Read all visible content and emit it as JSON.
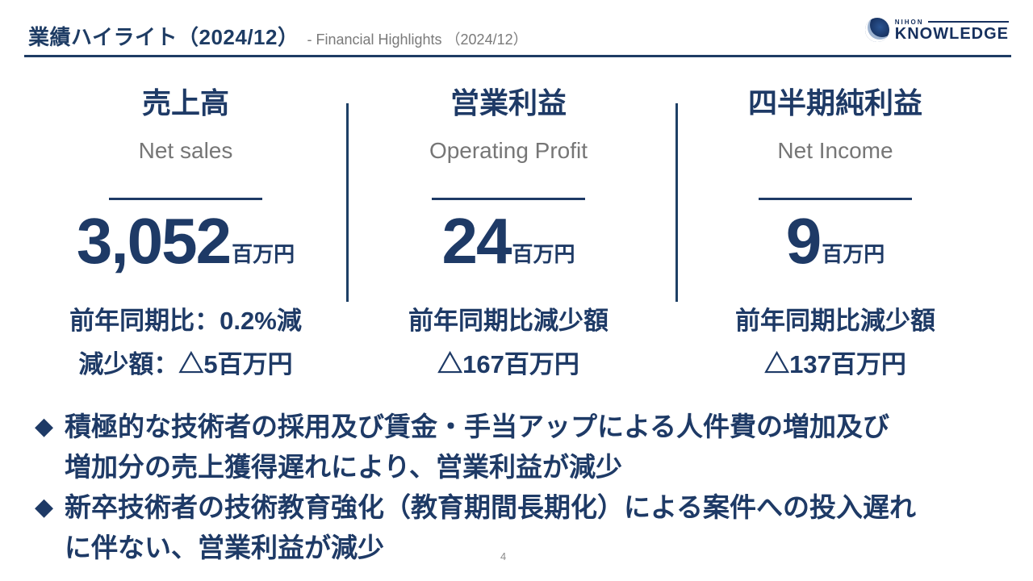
{
  "header": {
    "title_ja": "業績ハイライト（2024/12）",
    "title_en": "- Financial Highlights （2024/12）",
    "logo_top": "NIHON",
    "logo_main": "KNOWLEDGE"
  },
  "metrics": [
    {
      "label_ja": "売上高",
      "label_en": "Net sales",
      "value": "3,052",
      "unit": "百万円",
      "note1": "前年同期比：0.2%減",
      "note2": "減少額：△5百万円"
    },
    {
      "label_ja": "営業利益",
      "label_en": "Operating Profit",
      "value": "24",
      "unit": "百万円",
      "note1": "前年同期比減少額",
      "note2": "△167百万円"
    },
    {
      "label_ja": "四半期純利益",
      "label_en": "Net Income",
      "value": "9",
      "unit": "百万円",
      "note1": "前年同期比減少額",
      "note2": "△137百万円"
    }
  ],
  "bullets": [
    {
      "marker": "◆",
      "lines": [
        "積極的な技術者の採用及び賃金・手当アップによる人件費の増加及び",
        "増加分の売上獲得遅れにより、営業利益が減少"
      ]
    },
    {
      "marker": "◆",
      "lines": [
        "新卒技術者の技術教育強化（教育期間長期化）による案件への投入遅れ",
        "に伴ない、営業利益が減少"
      ]
    }
  ],
  "footer": {
    "page_number": "4"
  },
  "colors": {
    "navy": "#1e3a66",
    "gray": "#7a7a7a",
    "title_navy": "#1e3c64"
  }
}
